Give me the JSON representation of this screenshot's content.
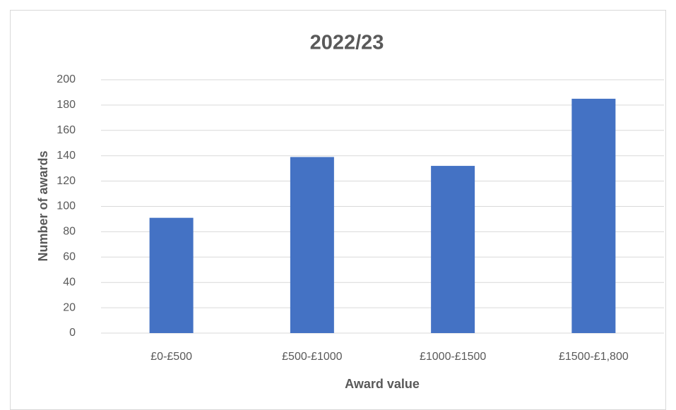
{
  "chart_data": {
    "type": "bar",
    "title": "2022/23",
    "x_label": "Award value",
    "y_label": "Number of awards",
    "categories": [
      "£0-£500",
      "£500-£1000",
      "£1000-£1500",
      "£1500-£1,800"
    ],
    "values": [
      91,
      139,
      132,
      185
    ],
    "color": "#4472c4",
    "ylim": [
      0,
      200
    ],
    "yticks": [
      0,
      20,
      40,
      60,
      80,
      100,
      120,
      140,
      160,
      180,
      200
    ],
    "grid": true
  }
}
